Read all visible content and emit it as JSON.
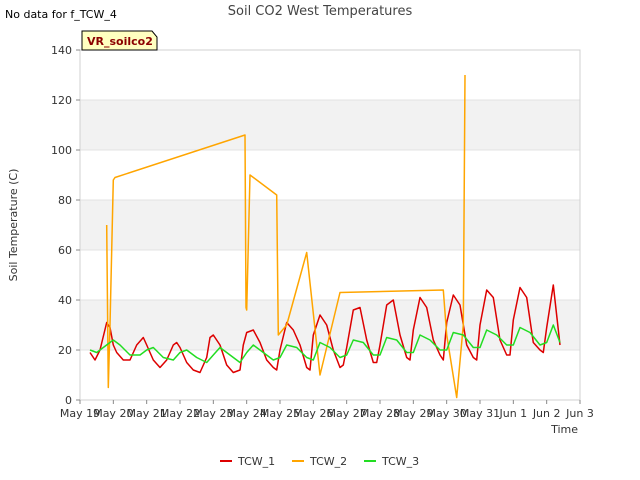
{
  "note": "No data for f_TCW_4",
  "tag": "VR_soilco2",
  "chart_data": {
    "type": "line",
    "title": "Soil CO2 West Temperatures",
    "xlabel": "Time",
    "ylabel": "Soil Temperature (C)",
    "xlim": [
      0,
      15
    ],
    "ylim": [
      0,
      140
    ],
    "x_ticks": [
      {
        "x": 0,
        "label": "May 19"
      },
      {
        "x": 1,
        "label": "May 20"
      },
      {
        "x": 2,
        "label": "May 21"
      },
      {
        "x": 3,
        "label": "May 22"
      },
      {
        "x": 4,
        "label": "May 23"
      },
      {
        "x": 5,
        "label": "May 24"
      },
      {
        "x": 6,
        "label": "May 25"
      },
      {
        "x": 7,
        "label": "May 26"
      },
      {
        "x": 8,
        "label": "May 27"
      },
      {
        "x": 9,
        "label": "May 28"
      },
      {
        "x": 10,
        "label": "May 29"
      },
      {
        "x": 11,
        "label": "May 30"
      },
      {
        "x": 12,
        "label": "May 31"
      },
      {
        "x": 13,
        "label": "Jun 1"
      },
      {
        "x": 14,
        "label": "Jun 2"
      },
      {
        "x": 15,
        "label": "Jun 3"
      }
    ],
    "y_ticks": [
      0,
      20,
      40,
      60,
      80,
      100,
      120,
      140
    ],
    "grid": true,
    "bands": "alternating",
    "legend": "bottom",
    "series": [
      {
        "name": "TCW_1",
        "color": "#dd0000",
        "x": [
          0.3,
          0.45,
          0.6,
          0.8,
          0.9,
          1.0,
          1.1,
          1.3,
          1.5,
          1.7,
          1.9,
          2.0,
          2.2,
          2.4,
          2.6,
          2.8,
          2.9,
          3.0,
          3.2,
          3.4,
          3.6,
          3.8,
          3.9,
          4.0,
          4.2,
          4.4,
          4.6,
          4.8,
          4.9,
          5.0,
          5.2,
          5.4,
          5.6,
          5.8,
          5.9,
          6.0,
          6.2,
          6.4,
          6.6,
          6.8,
          6.9,
          7.0,
          7.2,
          7.4,
          7.6,
          7.8,
          7.9,
          8.0,
          8.2,
          8.4,
          8.6,
          8.8,
          8.9,
          9.0,
          9.2,
          9.4,
          9.6,
          9.8,
          9.9,
          10.0,
          10.2,
          10.4,
          10.6,
          10.8,
          10.9,
          11.0,
          11.2,
          11.4,
          11.6,
          11.8,
          11.9,
          12.0,
          12.2,
          12.4,
          12.6,
          12.8,
          12.9,
          13.0,
          13.2,
          13.4,
          13.6,
          13.8,
          13.9,
          14.0,
          14.2,
          14.4
        ],
        "y": [
          19,
          16,
          20,
          31,
          29,
          22,
          19,
          16,
          16,
          22,
          25,
          22,
          16,
          13,
          16,
          22,
          23,
          21,
          15,
          12,
          11,
          17,
          25,
          26,
          22,
          14,
          11,
          12,
          22,
          27,
          28,
          23,
          16,
          13,
          12,
          20,
          31,
          28,
          22,
          13,
          12,
          26,
          34,
          30,
          20,
          13,
          14,
          21,
          36,
          37,
          24,
          15,
          15,
          22,
          38,
          40,
          26,
          17,
          16,
          28,
          41,
          37,
          24,
          18,
          16,
          31,
          42,
          38,
          22,
          17,
          16,
          30,
          44,
          41,
          24,
          18,
          18,
          32,
          45,
          41,
          23,
          20,
          19,
          29,
          46,
          22
        ]
      },
      {
        "name": "TCW_2",
        "color": "#ffa500",
        "x": [
          0.8,
          0.85,
          0.9,
          1.0,
          1.05,
          4.95,
          4.98,
          5.0,
          5.1,
          5.9,
          5.95,
          6.2,
          6.8,
          7.2,
          7.8,
          10.9,
          11.0,
          11.3,
          11.5,
          11.55
        ],
        "y": [
          70,
          5,
          30,
          88,
          89,
          106,
          37,
          36,
          90,
          82,
          26,
          30,
          59,
          10,
          43,
          44,
          26,
          1,
          30,
          130
        ]
      },
      {
        "name": "TCW_3",
        "color": "#22dd22",
        "x": [
          0.3,
          0.5,
          0.7,
          1.0,
          1.2,
          1.5,
          1.8,
          2.0,
          2.2,
          2.5,
          2.8,
          3.0,
          3.2,
          3.5,
          3.8,
          4.0,
          4.2,
          4.5,
          4.8,
          5.0,
          5.2,
          5.5,
          5.8,
          6.0,
          6.2,
          6.5,
          6.8,
          7.0,
          7.2,
          7.5,
          7.8,
          8.0,
          8.2,
          8.5,
          8.8,
          9.0,
          9.2,
          9.5,
          9.8,
          10.0,
          10.2,
          10.5,
          10.8,
          11.0,
          11.2,
          11.5,
          11.8,
          12.0,
          12.2,
          12.5,
          12.8,
          13.0,
          13.2,
          13.5,
          13.8,
          14.0,
          14.2,
          14.4
        ],
        "y": [
          20,
          19,
          21,
          24,
          22,
          18,
          18,
          20,
          21,
          17,
          16,
          19,
          20,
          17,
          15,
          18,
          21,
          18,
          15,
          19,
          22,
          19,
          16,
          17,
          22,
          21,
          17,
          16,
          23,
          21,
          17,
          18,
          24,
          23,
          18,
          18,
          25,
          24,
          19,
          19,
          26,
          24,
          20,
          20,
          27,
          26,
          21,
          21,
          28,
          26,
          22,
          22,
          29,
          27,
          22,
          23,
          30,
          23
        ]
      }
    ]
  }
}
